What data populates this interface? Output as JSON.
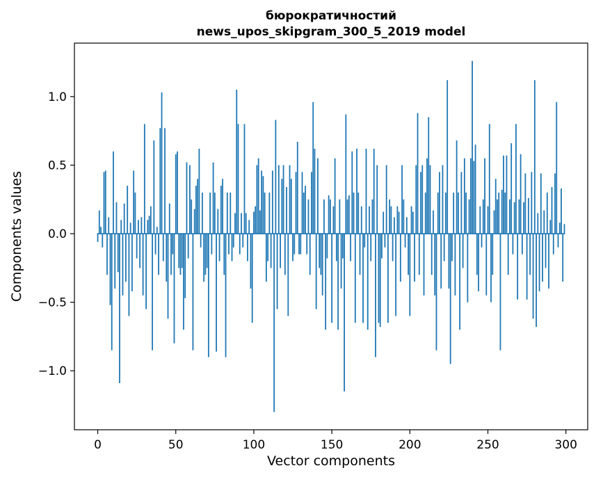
{
  "figure": {
    "title_line1": "бюрократичностий",
    "title_line2": "news_upos_skipgram_300_5_2019 model",
    "xlabel": "Vector components",
    "ylabel": "Components values"
  },
  "chart_data": {
    "type": "bar",
    "title": "бюрократичностий\nnews_upos_skipgram_300_5_2019 model",
    "xlabel": "Vector components",
    "ylabel": "Components values",
    "bar_color": "#1f77b4",
    "axis_color": "#000000",
    "grid": false,
    "legend": false,
    "x_ticks": [
      0,
      50,
      100,
      150,
      200,
      250,
      300
    ],
    "y_ticks": [
      -1.0,
      -0.5,
      0.0,
      0.5,
      1.0
    ],
    "xlim": [
      -14.95,
      313.95
    ],
    "ylim": [
      -1.43,
      1.39
    ],
    "n_components": 300,
    "values": [
      -0.06,
      0.17,
      0.05,
      -0.1,
      0.45,
      0.46,
      -0.3,
      0.12,
      -0.52,
      -0.85,
      0.6,
      -0.4,
      0.23,
      -0.28,
      -1.09,
      0.1,
      -0.45,
      0.22,
      -0.35,
      0.35,
      -0.6,
      0.08,
      -0.42,
      0.46,
      0.3,
      -0.18,
      0.1,
      -0.25,
      0.12,
      -0.45,
      0.8,
      -0.55,
      0.1,
      0.13,
      0.2,
      -0.85,
      0.68,
      -0.15,
      0.05,
      -0.3,
      0.77,
      1.03,
      -0.2,
      0.77,
      -0.35,
      -0.62,
      0.22,
      -0.3,
      -0.15,
      -0.8,
      0.58,
      0.6,
      -0.25,
      -0.3,
      -0.25,
      -0.7,
      -0.47,
      0.52,
      -0.18,
      0.5,
      0.25,
      -0.85,
      0.18,
      0.35,
      0.4,
      0.62,
      -0.1,
      0.3,
      -0.35,
      -0.3,
      -0.25,
      -0.9,
      0.3,
      -0.15,
      0.52,
      0.3,
      -0.86,
      0.18,
      -0.2,
      0.35,
      0.4,
      -0.3,
      -0.9,
      0.3,
      -0.15,
      0.3,
      -0.2,
      -0.1,
      0.15,
      1.05,
      0.8,
      -0.15,
      0.15,
      -0.1,
      0.8,
      0.15,
      -0.2,
      0.1,
      -0.4,
      -0.65,
      0.16,
      0.2,
      0.5,
      0.55,
      0.17,
      0.46,
      0.42,
      0.3,
      -0.35,
      -0.2,
      0.3,
      -0.25,
      0.46,
      -1.3,
      0.83,
      -0.55,
      0.5,
      -0.25,
      0.4,
      0.5,
      -0.3,
      0.34,
      -0.6,
      0.5,
      0.4,
      -0.2,
      -0.15,
      0.45,
      0.67,
      -0.15,
      -0.15,
      0.45,
      0.3,
      0.35,
      -0.15,
      0.25,
      -0.3,
      0.45,
      0.96,
      0.62,
      -0.55,
      0.55,
      -0.25,
      -0.3,
      -0.45,
      0.25,
      -0.7,
      -0.18,
      0.28,
      0.25,
      -0.65,
      0.2,
      0.55,
      -0.2,
      -0.7,
      0.25,
      -0.4,
      -0.18,
      -1.15,
      0.87,
      0.25,
      0.28,
      -0.2,
      0.6,
      0.3,
      -0.65,
      0.62,
      0.3,
      -0.3,
      0.2,
      -0.65,
      -0.1,
      0.62,
      -0.7,
      0.2,
      -0.2,
      0.25,
      0.62,
      -0.9,
      0.5,
      -0.65,
      -0.68,
      -0.18,
      0.16,
      -0.1,
      0.5,
      -0.65,
      0.25,
      0.2,
      -0.2,
      0.12,
      -0.6,
      0.2,
      0.16,
      -0.35,
      0.5,
      0.25,
      -0.1,
      0.12,
      -0.3,
      -0.6,
      0.2,
      0.16,
      -0.35,
      0.5,
      0.88,
      -0.3,
      0.45,
      0.5,
      -0.45,
      0.3,
      0.55,
      0.85,
      0.5,
      -0.3,
      0.17,
      -0.45,
      -0.85,
      0.3,
      0.45,
      -0.4,
      0.5,
      -0.2,
      0.3,
      1.12,
      -0.4,
      -0.95,
      -0.2,
      0.3,
      -0.45,
      0.68,
      0.3,
      -0.7,
      0.45,
      -0.25,
      0.55,
      0.3,
      -0.5,
      0.25,
      0.55,
      1.26,
      0.53,
      0.65,
      -0.3,
      -0.42,
      0.2,
      -0.1,
      0.25,
      0.55,
      -0.45,
      0.2,
      0.8,
      -0.5,
      -0.3,
      0.17,
      0.4,
      0.25,
      0.3,
      -0.85,
      0.32,
      0.57,
      0.3,
      0.57,
      -0.3,
      0.25,
      0.66,
      -0.15,
      0.23,
      0.8,
      -0.48,
      0.25,
      0.58,
      -0.15,
      0.23,
      0.44,
      -0.48,
      0.26,
      -0.3,
      0.45,
      -0.62,
      1.12,
      -0.68,
      0.15,
      -0.42,
      0.44,
      -0.35,
      0.17,
      -0.25,
      0.3,
      -0.4,
      0.1,
      0.34,
      -0.15,
      0.44,
      0.96,
      -0.1,
      0.08,
      0.33,
      -0.35,
      0.07
    ]
  }
}
